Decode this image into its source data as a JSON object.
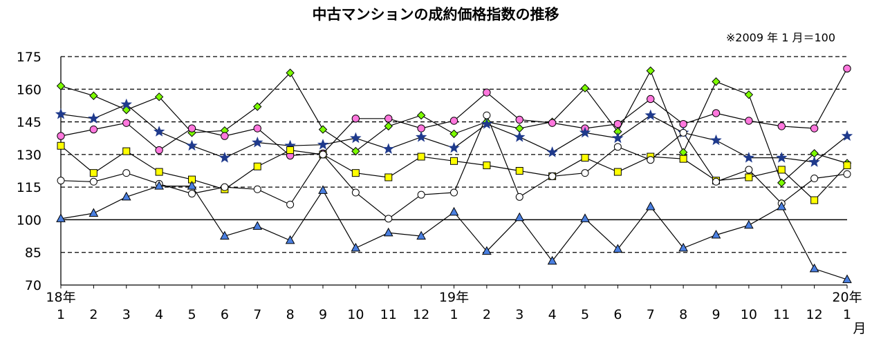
{
  "chart_data": {
    "type": "line",
    "title": "中古マンションの成約価格指数の推移",
    "note": "※2009 年 1 月＝100",
    "ylim": [
      70,
      175
    ],
    "yticks": [
      70,
      85,
      100,
      115,
      130,
      145,
      160,
      175
    ],
    "grid": "dashed horizontal, solid line at 100",
    "legend": "none",
    "categories": [
      "1",
      "2",
      "3",
      "4",
      "5",
      "6",
      "7",
      "8",
      "9",
      "10",
      "11",
      "12",
      "1",
      "2",
      "3",
      "4",
      "5",
      "6",
      "7",
      "8",
      "9",
      "10",
      "11",
      "12",
      "1"
    ],
    "year_labels": [
      {
        "index": 0,
        "label": "18年"
      },
      {
        "index": 12,
        "label": "19年"
      },
      {
        "index": 24,
        "label": "20年"
      }
    ],
    "month_unit": "月",
    "series": [
      {
        "marker": "diamond",
        "color": "#7CFC00",
        "values": [
          161.5,
          157,
          150.5,
          156.5,
          140,
          141,
          152,
          167.5,
          141.5,
          131.5,
          143,
          148,
          139.5,
          145,
          142,
          145,
          160.5,
          140.5,
          168.5,
          131,
          163.5,
          157.5,
          117,
          130.5,
          126
        ]
      },
      {
        "marker": "circle",
        "color": "#FF77DD",
        "values": [
          138.5,
          141.5,
          144.5,
          132,
          142,
          138.5,
          142,
          129.5,
          130.5,
          146.5,
          146.5,
          142,
          145.5,
          158.5,
          146,
          144.5,
          142,
          144,
          155.5,
          144,
          149,
          145.5,
          143,
          142,
          169.5
        ]
      },
      {
        "marker": "star",
        "color": "#1F3A8C",
        "values": [
          148.5,
          146.5,
          153,
          140.5,
          134,
          128.5,
          135.5,
          134,
          134.5,
          137.5,
          132.5,
          138,
          133,
          144,
          138,
          131,
          140,
          137.5,
          148,
          140,
          136.5,
          128.5,
          128.5,
          126.5,
          138.5
        ]
      },
      {
        "marker": "square",
        "color": "#FFFF00",
        "values": [
          134,
          121.5,
          131.5,
          122,
          118.5,
          114,
          124.5,
          132,
          130,
          121.5,
          119.5,
          129,
          127,
          125,
          122.5,
          120,
          128.5,
          122,
          129,
          128,
          118,
          119.5,
          123,
          109,
          125
        ]
      },
      {
        "marker": "open-circle",
        "color": "#FFFFFF",
        "values": [
          118,
          117.5,
          121.5,
          116.5,
          112,
          115,
          114,
          107,
          130,
          112.5,
          100.5,
          111.5,
          112.5,
          148,
          110.5,
          120,
          121.5,
          133.5,
          127.5,
          140,
          117.5,
          123,
          107.5,
          119,
          121
        ]
      },
      {
        "marker": "triangle",
        "color": "#4A7FE0",
        "values": [
          100.5,
          103,
          110.5,
          115.5,
          115.5,
          92.5,
          97,
          90.5,
          113.5,
          87,
          94,
          92.5,
          103.5,
          85.5,
          101,
          81,
          100.5,
          86.5,
          106,
          87,
          93,
          97.5,
          106,
          77.5,
          72.5
        ]
      }
    ]
  }
}
